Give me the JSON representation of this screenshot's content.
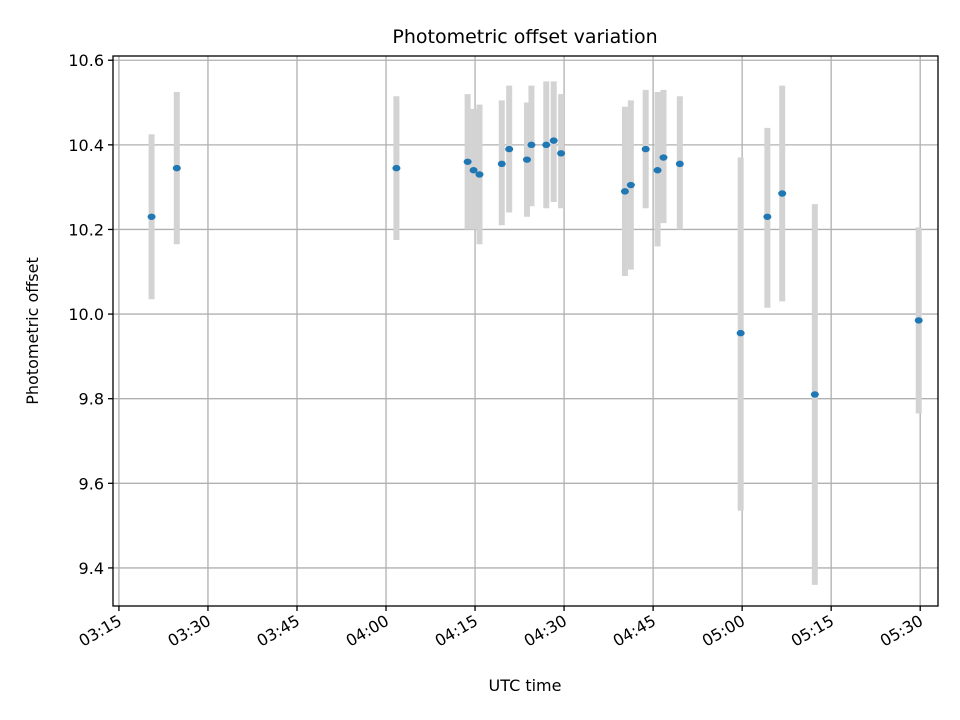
{
  "chart_data": {
    "type": "scatter",
    "title": "Photometric offset variation",
    "xlabel": "UTC time",
    "ylabel": "Photometric offset",
    "x_unit": "UTC hh:mm",
    "xlim": [
      "03:14",
      "05:33"
    ],
    "ylim": [
      9.31,
      10.61
    ],
    "x_ticks": [
      "03:15",
      "03:30",
      "03:45",
      "04:00",
      "04:15",
      "04:30",
      "04:45",
      "05:00",
      "05:15",
      "05:30"
    ],
    "y_ticks": [
      9.4,
      9.6,
      9.8,
      10.0,
      10.2,
      10.4,
      10.6
    ],
    "y_tick_labels": [
      "9.4",
      "9.6",
      "9.8",
      "10.0",
      "10.2",
      "10.4",
      "10.6"
    ],
    "grid": true,
    "x_tick_rotation": 30,
    "colors": {
      "marker": "#1f77b4",
      "errorbar": "#d3d3d3",
      "grid": "#b0b0b0"
    },
    "points": [
      {
        "x": "03:20:30",
        "y": 10.23,
        "err_low": 10.035,
        "err_high": 10.425
      },
      {
        "x": "03:24:45",
        "y": 10.345,
        "err_low": 10.165,
        "err_high": 10.525
      },
      {
        "x": "04:01:45",
        "y": 10.345,
        "err_low": 10.175,
        "err_high": 10.515
      },
      {
        "x": "04:13:45",
        "y": 10.36,
        "err_low": 10.2,
        "err_high": 10.52
      },
      {
        "x": "04:14:45",
        "y": 10.34,
        "err_low": 10.2,
        "err_high": 10.485
      },
      {
        "x": "04:15:45",
        "y": 10.33,
        "err_low": 10.165,
        "err_high": 10.495
      },
      {
        "x": "04:19:30",
        "y": 10.355,
        "err_low": 10.21,
        "err_high": 10.505
      },
      {
        "x": "04:20:45",
        "y": 10.39,
        "err_low": 10.24,
        "err_high": 10.54
      },
      {
        "x": "04:23:45",
        "y": 10.365,
        "err_low": 10.23,
        "err_high": 10.5
      },
      {
        "x": "04:24:30",
        "y": 10.4,
        "err_low": 10.255,
        "err_high": 10.54
      },
      {
        "x": "04:27:00",
        "y": 10.4,
        "err_low": 10.25,
        "err_high": 10.55
      },
      {
        "x": "04:28:15",
        "y": 10.41,
        "err_low": 10.265,
        "err_high": 10.55
      },
      {
        "x": "04:29:30",
        "y": 10.38,
        "err_low": 10.25,
        "err_high": 10.52
      },
      {
        "x": "04:40:15",
        "y": 10.29,
        "err_low": 10.09,
        "err_high": 10.49
      },
      {
        "x": "04:41:15",
        "y": 10.305,
        "err_low": 10.105,
        "err_high": 10.505
      },
      {
        "x": "04:43:45",
        "y": 10.39,
        "err_low": 10.25,
        "err_high": 10.53
      },
      {
        "x": "04:45:45",
        "y": 10.34,
        "err_low": 10.16,
        "err_high": 10.525
      },
      {
        "x": "04:46:45",
        "y": 10.37,
        "err_low": 10.215,
        "err_high": 10.53
      },
      {
        "x": "04:49:30",
        "y": 10.355,
        "err_low": 10.2,
        "err_high": 10.515
      },
      {
        "x": "04:59:45",
        "y": 9.955,
        "err_low": 9.535,
        "err_high": 10.37
      },
      {
        "x": "05:04:15",
        "y": 10.23,
        "err_low": 10.015,
        "err_high": 10.44
      },
      {
        "x": "05:06:45",
        "y": 10.285,
        "err_low": 10.03,
        "err_high": 10.54
      },
      {
        "x": "05:12:15",
        "y": 9.81,
        "err_low": 9.36,
        "err_high": 10.26
      },
      {
        "x": "05:29:45",
        "y": 9.985,
        "err_low": 9.765,
        "err_high": 10.205
      }
    ]
  }
}
